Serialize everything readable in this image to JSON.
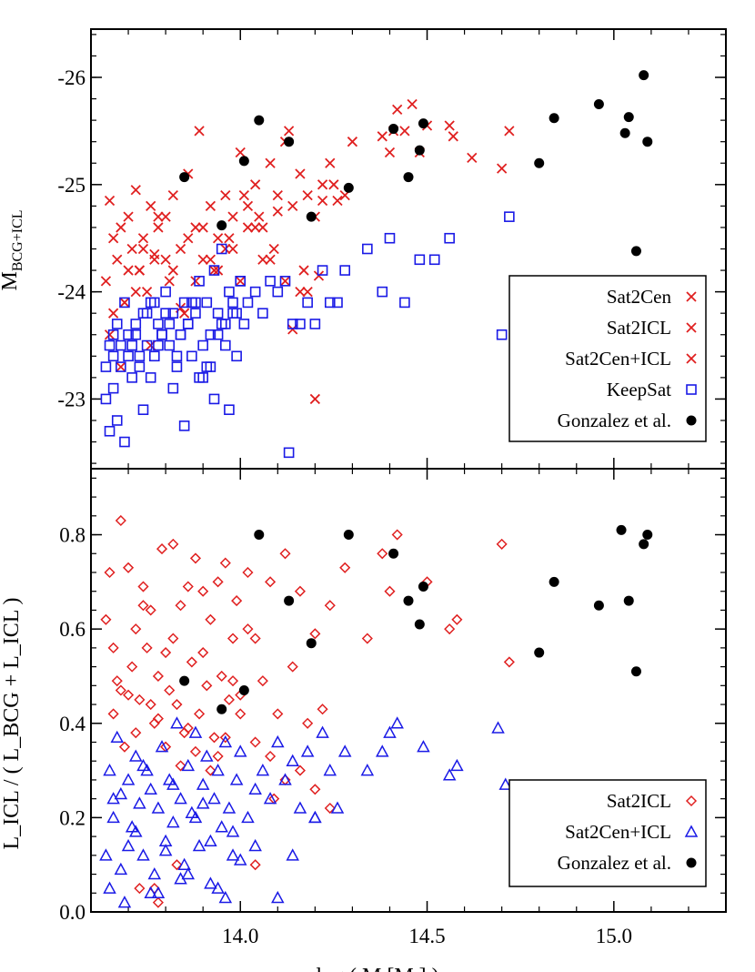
{
  "colors": {
    "red": "#e02020",
    "blue": "#1a1ae6",
    "black": "#000000"
  },
  "top_panel": {
    "ylabel_main": "M",
    "ylabel_sub": "BCG+ICL",
    "legend": [
      {
        "label": "Sat2Cen",
        "marker": "x",
        "color": "#e02020"
      },
      {
        "label": "Sat2ICL",
        "marker": "x",
        "color": "#e02020"
      },
      {
        "label": "Sat2Cen+ICL",
        "marker": "x",
        "color": "#e02020"
      },
      {
        "label": "KeepSat",
        "marker": "square",
        "color": "#1a1ae6"
      },
      {
        "label": "Gonzalez et al.",
        "marker": "circle",
        "color": "#000000"
      }
    ]
  },
  "bottom_panel": {
    "ylabel": "L_ICL / ( L_BCG + L_ICL )",
    "legend": [
      {
        "label": "Sat2ICL",
        "marker": "diamond",
        "color": "#e02020"
      },
      {
        "label": "Sat2Cen+ICL",
        "marker": "triangle",
        "color": "#1a1ae6"
      },
      {
        "label": "Gonzalez et al.",
        "marker": "circle",
        "color": "#000000"
      }
    ]
  },
  "xlabel": "log   ( M     [M  ] )",
  "chart_data": [
    {
      "type": "scatter",
      "panel": "top",
      "xlim": [
        13.6,
        15.3
      ],
      "ylim": [
        -22.35,
        -26.45
      ],
      "yticks": [
        -26,
        -25,
        -24,
        -23
      ],
      "ytick_labels": [
        "-26",
        "-25",
        "-24",
        "-23"
      ],
      "xticks": [
        14.0,
        14.5,
        15.0
      ],
      "series": [
        {
          "name": "Sat2Cen / Sat2ICL / Sat2Cen+ICL",
          "marker": "x",
          "color": "#e02020",
          "x": [
            13.64,
            13.65,
            13.66,
            13.67,
            13.68,
            13.69,
            13.7,
            13.71,
            13.72,
            13.73,
            13.74,
            13.75,
            13.76,
            13.77,
            13.78,
            13.8,
            13.82,
            13.84,
            13.86,
            13.88,
            13.9,
            13.92,
            13.94,
            13.96,
            13.98,
            14.0,
            14.02,
            14.04,
            14.06,
            14.08,
            14.1,
            14.12,
            14.14,
            14.16,
            14.18,
            14.2,
            14.22,
            14.24,
            14.28,
            14.3,
            14.38,
            14.4,
            14.42,
            14.44,
            14.48,
            14.5,
            14.56,
            14.62,
            14.7,
            14.72,
            13.66,
            13.7,
            13.74,
            13.78,
            13.82,
            13.86,
            13.9,
            13.94,
            13.98,
            14.02,
            14.06,
            14.1,
            14.14,
            14.18,
            14.22,
            14.26,
            13.68,
            13.72,
            13.76,
            13.8,
            13.84,
            13.88,
            13.92,
            13.96,
            14.0,
            14.04,
            14.08,
            14.12,
            14.16,
            14.2,
            13.89,
            14.13,
            14.21,
            14.25,
            14.41,
            14.46,
            14.57,
            13.65,
            13.69,
            13.73,
            13.77,
            13.81,
            13.85,
            13.93,
            13.97,
            14.01,
            14.05,
            14.09,
            14.17
          ],
          "y": [
            -24.1,
            -24.85,
            -23.8,
            -24.3,
            -24.6,
            -23.9,
            -24.7,
            -24.4,
            -24.95,
            -24.2,
            -24.5,
            -24.0,
            -24.8,
            -24.3,
            -24.6,
            -24.7,
            -24.9,
            -24.4,
            -25.1,
            -24.6,
            -24.3,
            -24.8,
            -24.5,
            -24.9,
            -24.7,
            -25.3,
            -24.8,
            -25.0,
            -24.6,
            -25.2,
            -24.9,
            -25.4,
            -24.8,
            -25.1,
            -24.9,
            -24.7,
            -25.0,
            -25.2,
            -24.9,
            -25.4,
            -25.45,
            -25.3,
            -25.7,
            -25.5,
            -25.3,
            -25.55,
            -25.55,
            -25.25,
            -25.15,
            -25.5,
            -24.5,
            -24.2,
            -24.4,
            -24.7,
            -24.2,
            -24.5,
            -24.6,
            -24.2,
            -24.4,
            -24.6,
            -24.3,
            -24.75,
            -23.65,
            -24.0,
            -24.85,
            -24.85,
            -23.3,
            -24.0,
            -23.5,
            -24.3,
            -23.85,
            -24.1,
            -24.3,
            -24.4,
            -24.1,
            -24.6,
            -24.3,
            -24.1,
            -24.0,
            -23.0,
            -25.5,
            -25.5,
            -24.15,
            -25.0,
            -25.5,
            -25.75,
            -25.45,
            -23.6,
            -23.9,
            -24.2,
            -24.35,
            -24.1,
            -23.8,
            -24.2,
            -24.5,
            -24.9,
            -24.7,
            -24.4,
            -24.2
          ]
        },
        {
          "name": "KeepSat",
          "marker": "square",
          "color": "#1a1ae6",
          "x": [
            13.64,
            13.65,
            13.66,
            13.67,
            13.68,
            13.69,
            13.7,
            13.71,
            13.72,
            13.73,
            13.74,
            13.75,
            13.76,
            13.77,
            13.78,
            13.79,
            13.8,
            13.81,
            13.82,
            13.83,
            13.84,
            13.85,
            13.86,
            13.87,
            13.88,
            13.89,
            13.9,
            13.91,
            13.92,
            13.93,
            13.94,
            13.95,
            13.96,
            13.97,
            13.98,
            13.99,
            14.0,
            14.02,
            14.04,
            14.06,
            14.08,
            14.1,
            14.12,
            14.14,
            14.16,
            14.18,
            14.2,
            14.22,
            14.24,
            14.26,
            14.28,
            14.34,
            14.38,
            14.4,
            14.44,
            14.48,
            14.52,
            14.56,
            14.7,
            14.72,
            13.65,
            13.68,
            13.72,
            13.76,
            13.8,
            13.84,
            13.88,
            13.92,
            13.96,
            14.0,
            13.66,
            13.7,
            13.74,
            13.78,
            13.82,
            13.86,
            13.9,
            13.94,
            13.98,
            14.13,
            13.64,
            13.67,
            13.71,
            13.75,
            13.79,
            13.83,
            13.87,
            13.91,
            13.95,
            13.99,
            13.66,
            13.69,
            13.73,
            13.77,
            13.81,
            13.85,
            13.89,
            13.93,
            13.97,
            14.01
          ],
          "y": [
            -23.0,
            -22.7,
            -23.4,
            -22.8,
            -23.5,
            -22.6,
            -23.6,
            -23.2,
            -23.7,
            -23.3,
            -23.8,
            -23.5,
            -23.9,
            -23.4,
            -23.7,
            -23.6,
            -24.0,
            -23.5,
            -23.8,
            -23.3,
            -23.6,
            -23.9,
            -23.7,
            -23.4,
            -23.8,
            -24.1,
            -23.5,
            -23.9,
            -23.6,
            -24.2,
            -23.8,
            -24.4,
            -23.7,
            -24.0,
            -23.9,
            -23.4,
            -24.1,
            -23.9,
            -24.0,
            -23.8,
            -24.1,
            -24.0,
            -24.1,
            -23.7,
            -23.7,
            -23.9,
            -23.7,
            -24.2,
            -23.9,
            -23.9,
            -24.2,
            -24.4,
            -24.0,
            -24.5,
            -23.9,
            -24.3,
            -24.3,
            -24.5,
            -23.6,
            -24.7,
            -23.5,
            -23.3,
            -23.6,
            -23.2,
            -23.8,
            -23.6,
            -23.9,
            -23.3,
            -23.5,
            -24.1,
            -23.1,
            -23.4,
            -22.9,
            -23.5,
            -23.1,
            -23.7,
            -23.2,
            -23.6,
            -23.8,
            -22.5,
            -23.3,
            -23.7,
            -23.5,
            -23.8,
            -23.6,
            -23.4,
            -23.9,
            -23.3,
            -23.7,
            -23.8,
            -23.6,
            -23.9,
            -23.4,
            -23.9,
            -23.7,
            -22.75,
            -23.2,
            -23.0,
            -22.9,
            -23.7
          ]
        },
        {
          "name": "Gonzalez et al.",
          "marker": "circle",
          "color": "#000000",
          "x": [
            13.85,
            13.95,
            14.05,
            14.01,
            14.13,
            14.19,
            14.29,
            14.41,
            14.45,
            14.48,
            14.49,
            14.8,
            14.84,
            14.96,
            15.03,
            15.04,
            15.08,
            15.09,
            15.06
          ],
          "y": [
            -25.07,
            -24.62,
            -25.6,
            -25.22,
            -25.4,
            -24.7,
            -24.97,
            -25.52,
            -25.07,
            -25.32,
            -25.57,
            -25.2,
            -25.62,
            -25.75,
            -25.48,
            -25.63,
            -26.02,
            -25.4,
            -24.38
          ]
        }
      ]
    },
    {
      "type": "scatter",
      "panel": "bottom",
      "xlim": [
        13.6,
        15.3
      ],
      "ylim": [
        0.0,
        0.94
      ],
      "yticks": [
        0.0,
        0.2,
        0.4,
        0.6,
        0.8
      ],
      "ytick_labels": [
        "0.0",
        "0.2",
        "0.4",
        "0.6",
        "0.8"
      ],
      "xticks": [
        14.0,
        14.5,
        15.0
      ],
      "xtick_labels": [
        "14.0",
        "14.5",
        "15.0"
      ],
      "series": [
        {
          "name": "Sat2ICL",
          "marker": "diamond",
          "color": "#e02020",
          "x": [
            13.64,
            13.65,
            13.66,
            13.67,
            13.68,
            13.69,
            13.7,
            13.71,
            13.72,
            13.73,
            13.74,
            13.75,
            13.76,
            13.77,
            13.78,
            13.79,
            13.8,
            13.81,
            13.82,
            13.83,
            13.84,
            13.85,
            13.86,
            13.87,
            13.88,
            13.89,
            13.9,
            13.91,
            13.92,
            13.93,
            13.94,
            13.95,
            13.96,
            13.97,
            13.98,
            13.99,
            14.0,
            14.02,
            14.04,
            14.06,
            14.08,
            14.1,
            14.12,
            14.14,
            14.16,
            14.18,
            14.2,
            14.22,
            14.24,
            14.28,
            14.34,
            14.38,
            14.4,
            14.42,
            14.5,
            14.56,
            14.58,
            14.7,
            14.72,
            13.66,
            13.7,
            13.74,
            13.78,
            13.82,
            13.86,
            13.9,
            13.94,
            13.98,
            14.02,
            13.68,
            13.72,
            13.76,
            13.8,
            13.84,
            13.88,
            13.92,
            13.96,
            14.0,
            14.04,
            14.08,
            14.12,
            14.16,
            14.2,
            14.24,
            14.09,
            13.73,
            13.78,
            13.77,
            13.83,
            14.04
          ],
          "y": [
            0.62,
            0.72,
            0.42,
            0.49,
            0.83,
            0.35,
            0.73,
            0.52,
            0.6,
            0.45,
            0.69,
            0.56,
            0.64,
            0.4,
            0.5,
            0.77,
            0.55,
            0.47,
            0.78,
            0.44,
            0.65,
            0.38,
            0.69,
            0.53,
            0.75,
            0.42,
            0.68,
            0.48,
            0.62,
            0.37,
            0.7,
            0.5,
            0.74,
            0.45,
            0.58,
            0.66,
            0.46,
            0.72,
            0.58,
            0.49,
            0.7,
            0.42,
            0.76,
            0.52,
            0.68,
            0.4,
            0.59,
            0.43,
            0.65,
            0.73,
            0.58,
            0.76,
            0.68,
            0.8,
            0.7,
            0.6,
            0.62,
            0.78,
            0.53,
            0.56,
            0.46,
            0.65,
            0.41,
            0.58,
            0.39,
            0.55,
            0.33,
            0.49,
            0.6,
            0.47,
            0.38,
            0.44,
            0.35,
            0.31,
            0.34,
            0.3,
            0.37,
            0.42,
            0.36,
            0.33,
            0.28,
            0.3,
            0.26,
            0.22,
            0.24,
            0.05,
            0.02,
            0.05,
            0.1,
            0.1
          ]
        },
        {
          "name": "Sat2Cen+ICL",
          "marker": "triangle",
          "color": "#1a1ae6",
          "x": [
            13.64,
            13.65,
            13.66,
            13.67,
            13.68,
            13.69,
            13.7,
            13.71,
            13.72,
            13.73,
            13.74,
            13.75,
            13.76,
            13.77,
            13.78,
            13.79,
            13.8,
            13.81,
            13.82,
            13.83,
            13.84,
            13.85,
            13.86,
            13.87,
            13.88,
            13.89,
            13.9,
            13.91,
            13.92,
            13.93,
            13.94,
            13.95,
            13.96,
            13.97,
            13.98,
            13.99,
            14.0,
            14.02,
            14.04,
            14.06,
            14.08,
            14.1,
            14.12,
            14.14,
            14.16,
            14.18,
            14.2,
            14.22,
            14.24,
            14.28,
            14.34,
            14.38,
            14.4,
            14.42,
            14.49,
            14.56,
            14.58,
            14.69,
            14.71,
            13.65,
            13.68,
            13.72,
            13.76,
            13.8,
            13.84,
            13.88,
            13.92,
            13.96,
            14.0,
            13.66,
            13.7,
            13.74,
            13.78,
            13.82,
            13.86,
            13.9,
            13.94,
            13.98,
            14.04,
            14.1,
            14.14,
            14.2,
            14.26
          ],
          "y": [
            0.12,
            0.3,
            0.2,
            0.37,
            0.25,
            0.02,
            0.28,
            0.18,
            0.33,
            0.23,
            0.12,
            0.3,
            0.26,
            0.08,
            0.22,
            0.35,
            0.15,
            0.28,
            0.19,
            0.4,
            0.24,
            0.1,
            0.31,
            0.21,
            0.38,
            0.14,
            0.27,
            0.33,
            0.06,
            0.24,
            0.3,
            0.18,
            0.36,
            0.22,
            0.12,
            0.28,
            0.34,
            0.2,
            0.26,
            0.3,
            0.24,
            0.36,
            0.28,
            0.32,
            0.22,
            0.34,
            0.2,
            0.38,
            0.3,
            0.34,
            0.3,
            0.34,
            0.38,
            0.4,
            0.35,
            0.29,
            0.31,
            0.39,
            0.27,
            0.05,
            0.09,
            0.17,
            0.04,
            0.13,
            0.07,
            0.2,
            0.15,
            0.03,
            0.11,
            0.24,
            0.14,
            0.31,
            0.04,
            0.27,
            0.08,
            0.23,
            0.05,
            0.17,
            0.14,
            0.03,
            0.12,
            0.2,
            0.22
          ]
        },
        {
          "name": "Gonzalez et al.",
          "marker": "circle",
          "color": "#000000",
          "x": [
            13.85,
            13.95,
            14.01,
            14.05,
            14.13,
            14.19,
            14.29,
            14.41,
            14.45,
            14.48,
            14.49,
            14.8,
            14.84,
            14.96,
            15.02,
            15.04,
            15.06,
            15.08,
            15.09
          ],
          "y": [
            0.49,
            0.43,
            0.47,
            0.8,
            0.66,
            0.57,
            0.8,
            0.76,
            0.66,
            0.61,
            0.69,
            0.55,
            0.7,
            0.65,
            0.81,
            0.66,
            0.51,
            0.78,
            0.8
          ]
        }
      ]
    }
  ]
}
